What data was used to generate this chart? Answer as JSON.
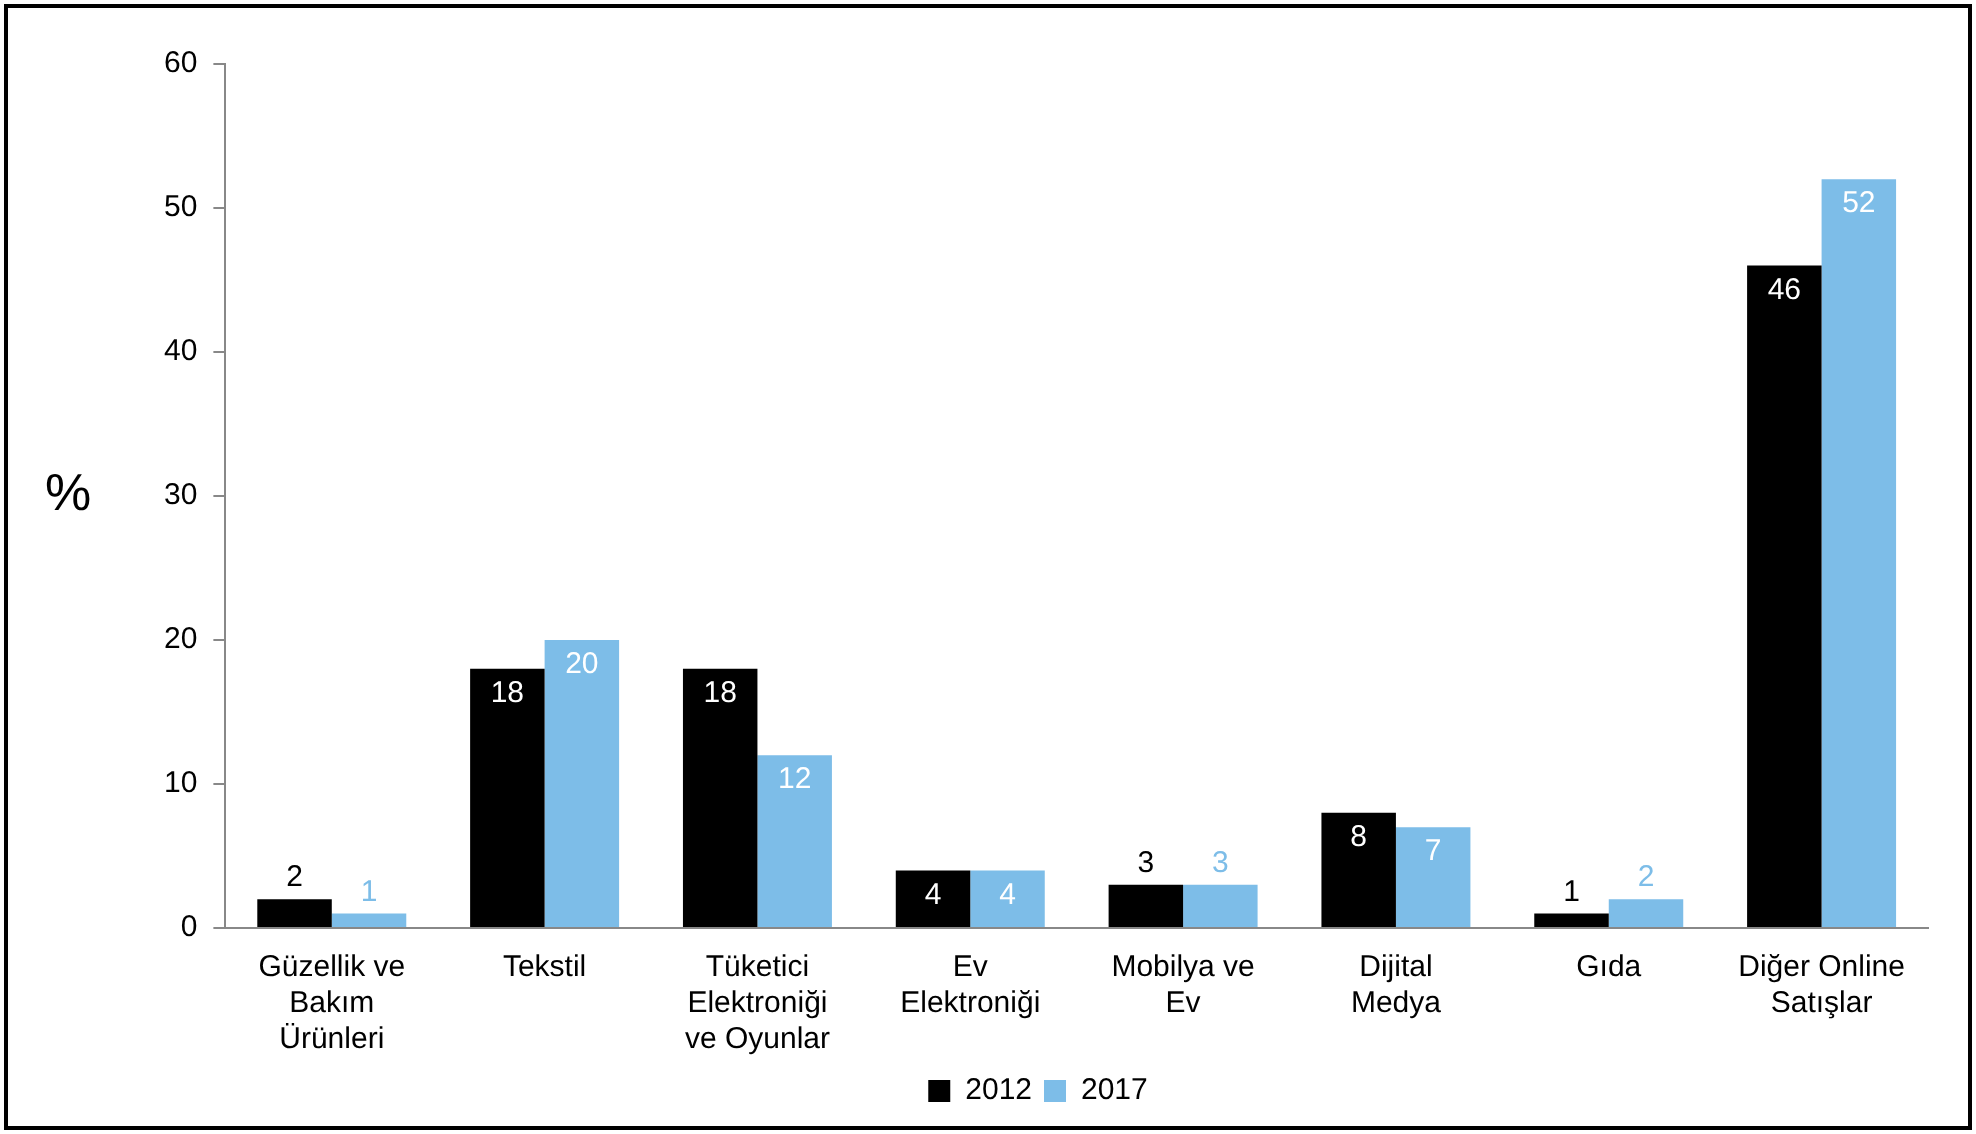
{
  "chart_data": {
    "type": "bar",
    "ylabel": "%",
    "categories": [
      "Güzellik ve\nBakım\nÜrünleri",
      "Tekstil",
      "Tüketici\nElektroniği\nve Oyunlar",
      "Ev\nElektroniği",
      "Mobilya ve\nEv",
      "Dijital\nMedya",
      "Gıda",
      "Diğer Online\nSatışlar"
    ],
    "series": [
      {
        "name": "2012",
        "color": "#000000",
        "values": [
          2,
          18,
          18,
          4,
          3,
          8,
          1,
          46
        ]
      },
      {
        "name": "2017",
        "color": "#7dbde8",
        "values": [
          1,
          20,
          12,
          4,
          3,
          7,
          2,
          52
        ]
      }
    ],
    "ylim": [
      0,
      60
    ],
    "yticks": [
      0,
      10,
      20,
      30,
      40,
      50,
      60
    ],
    "grid": false,
    "legend": "bottom",
    "data_labels": true
  }
}
